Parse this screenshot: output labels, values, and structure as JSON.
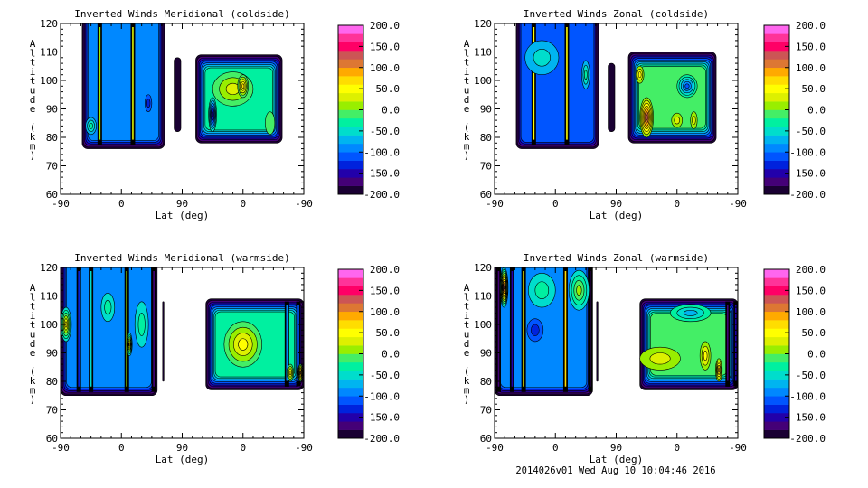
{
  "footer": "2014026v01 Wed Aug 10 10:04:46 2016",
  "colorbar": {
    "range": [
      -200,
      200
    ],
    "step": 20,
    "colors": [
      "#1a0033",
      "#440077",
      "#2200aa",
      "#0022dd",
      "#0055ff",
      "#0088ff",
      "#00b4f0",
      "#00ddcc",
      "#00f0a0",
      "#44ee66",
      "#99ee00",
      "#ddf000",
      "#ffff00",
      "#ffdd00",
      "#ffaa00",
      "#dd7733",
      "#cc5555",
      "#ff0066",
      "#ff3399",
      "#ff66ee"
    ],
    "labels": [
      "200.0",
      "150.0",
      "100.0",
      "50.0",
      "0.0",
      "-50.0",
      "-100.0",
      "-150.0",
      "-200.0"
    ],
    "label_values": [
      200,
      150,
      100,
      50,
      0,
      -50,
      -100,
      -150,
      -200
    ]
  },
  "chart_data": [
    {
      "type": "heatmap",
      "title": "Inverted Winds Meridional (coldside)",
      "xlabel": "Lat (deg)",
      "ylabel": "Altitude (km)",
      "xticks": [
        "-90",
        "0",
        "90",
        "0",
        "-90"
      ],
      "yticks": [
        "60",
        "70",
        "80",
        "90",
        "100",
        "110",
        "120"
      ],
      "ylim": [
        60,
        120
      ],
      "blocks": [
        {
          "pass": 1,
          "lat": [
            -58,
            64
          ],
          "alt": [
            76,
            120
          ],
          "base": -90,
          "stripes": [
            {
              "lat": -32,
              "value": 10
            },
            {
              "lat": 17,
              "value": 20
            }
          ],
          "blobs": [
            {
              "lat": -45,
              "alt": 84,
              "rx": 8,
              "ry": 3,
              "value": -40
            },
            {
              "lat": 40,
              "alt": 92,
              "rx": 5,
              "ry": 3,
              "value": -130
            }
          ]
        },
        {
          "pass": 1,
          "lat": [
            78,
            88
          ],
          "alt": [
            82,
            108
          ],
          "base": -190,
          "stripes": [],
          "blobs": []
        },
        {
          "pass": 2,
          "lat": [
            70,
            -58
          ],
          "alt": [
            78,
            109
          ],
          "base": -30,
          "stripes": [],
          "blobs": [
            {
              "lat": 15,
              "alt": 97,
              "rx": 30,
              "ry": 6,
              "value": 30
            },
            {
              "lat": 0,
              "alt": 98,
              "rx": 8,
              "ry": 4,
              "value": 60
            },
            {
              "lat": 45,
              "alt": 88,
              "rx": 6,
              "ry": 6,
              "value": -150
            },
            {
              "lat": -40,
              "alt": 85,
              "rx": 7,
              "ry": 4,
              "value": -30
            }
          ]
        }
      ]
    },
    {
      "type": "heatmap",
      "title": "Inverted Winds Zonal (coldside)",
      "xlabel": "Lat (deg)",
      "ylabel": "Altitude (km)",
      "xticks": [
        "-90",
        "0",
        "90",
        "0",
        "-90"
      ],
      "yticks": [
        "60",
        "70",
        "80",
        "90",
        "100",
        "110",
        "120"
      ],
      "ylim": [
        60,
        120
      ],
      "blocks": [
        {
          "pass": 1,
          "lat": [
            -58,
            64
          ],
          "alt": [
            76,
            120
          ],
          "base": -95,
          "stripes": [
            {
              "lat": -32,
              "value": 40
            },
            {
              "lat": 17,
              "value": 40
            }
          ],
          "blobs": [
            {
              "lat": -20,
              "alt": 108,
              "rx": 25,
              "ry": 6,
              "value": -60
            },
            {
              "lat": 45,
              "alt": 102,
              "rx": 6,
              "ry": 5,
              "value": -30
            }
          ]
        },
        {
          "pass": 1,
          "lat": [
            78,
            88
          ],
          "alt": [
            82,
            106
          ],
          "base": -190,
          "stripes": [],
          "blobs": []
        },
        {
          "pass": 2,
          "lat": [
            72,
            -58
          ],
          "alt": [
            78,
            110
          ],
          "base": -10,
          "stripes": [],
          "blobs": [
            {
              "lat": 45,
              "alt": 87,
              "rx": 10,
              "ry": 7,
              "value": 130
            },
            {
              "lat": 0,
              "alt": 86,
              "rx": 8,
              "ry": 2.5,
              "value": 30
            },
            {
              "lat": -25,
              "alt": 86,
              "rx": 5,
              "ry": 3,
              "value": 30
            },
            {
              "lat": -15,
              "alt": 98,
              "rx": 15,
              "ry": 4,
              "value": -110
            },
            {
              "lat": 55,
              "alt": 102,
              "rx": 6,
              "ry": 3,
              "value": 50
            }
          ]
        }
      ]
    },
    {
      "type": "heatmap",
      "title": "Inverted Winds Meridional (warmside)",
      "xlabel": "Lat (deg)",
      "ylabel": "Altitude (km)",
      "xticks": [
        "-90",
        "0",
        "90",
        "0",
        "-90"
      ],
      "yticks": [
        "60",
        "70",
        "80",
        "90",
        "100",
        "110",
        "120"
      ],
      "ylim": [
        60,
        120
      ],
      "blocks": [
        {
          "pass": 1,
          "lat": [
            -90,
            53
          ],
          "alt": [
            75,
            120
          ],
          "base": -80,
          "stripes": [
            {
              "lat": -63,
              "value": -140
            },
            {
              "lat": -45,
              "value": -60
            },
            {
              "lat": 8,
              "value": 0
            },
            {
              "lat": 48,
              "value": -180
            }
          ],
          "blobs": [
            {
              "lat": -82,
              "alt": 100,
              "rx": 8,
              "ry": 6,
              "value": 40
            },
            {
              "lat": 12,
              "alt": 93,
              "rx": 4,
              "ry": 4,
              "value": 40
            },
            {
              "lat": -20,
              "alt": 106,
              "rx": 10,
              "ry": 5,
              "value": -40
            },
            {
              "lat": 30,
              "alt": 100,
              "rx": 10,
              "ry": 8,
              "value": -50
            }
          ]
        },
        {
          "pass": 1,
          "lat": [
            61,
            63
          ],
          "alt": [
            80,
            108
          ],
          "base": -190,
          "stripes": [],
          "blobs": []
        },
        {
          "pass": 2,
          "lat": [
            55,
            -90
          ],
          "alt": [
            77,
            109
          ],
          "base": -30,
          "stripes": [
            {
              "lat": -65,
              "value": -100
            },
            {
              "lat": -82,
              "value": -120
            }
          ],
          "blobs": [
            {
              "lat": 0,
              "alt": 93,
              "rx": 28,
              "ry": 8,
              "value": 50
            },
            {
              "lat": -85,
              "alt": 83,
              "rx": 4,
              "ry": 3,
              "value": 100
            },
            {
              "lat": -70,
              "alt": 83,
              "rx": 5,
              "ry": 3,
              "value": 40
            }
          ]
        }
      ]
    },
    {
      "type": "heatmap",
      "title": "Inverted Winds Zonal (warmside)",
      "xlabel": "Lat (deg)",
      "ylabel": "Altitude (km)",
      "xticks": [
        "-90",
        "0",
        "90",
        "0",
        "-90"
      ],
      "yticks": [
        "60",
        "70",
        "80",
        "90",
        "100",
        "110",
        "120"
      ],
      "ylim": [
        60,
        120
      ],
      "blocks": [
        {
          "pass": 1,
          "lat": [
            -90,
            55
          ],
          "alt": [
            75,
            120
          ],
          "base": -80,
          "stripes": [
            {
              "lat": -84,
              "value": -180
            },
            {
              "lat": -64,
              "value": -160
            },
            {
              "lat": -47,
              "value": 40
            },
            {
              "lat": 15,
              "value": 60
            },
            {
              "lat": 52,
              "value": -190
            }
          ],
          "blobs": [
            {
              "lat": -76,
              "alt": 113,
              "rx": 6,
              "ry": 7,
              "value": 110
            },
            {
              "lat": -30,
              "alt": 98,
              "rx": 12,
              "ry": 4,
              "value": -120
            },
            {
              "lat": -20,
              "alt": 112,
              "rx": 20,
              "ry": 6,
              "value": -40
            },
            {
              "lat": 35,
              "alt": 112,
              "rx": 15,
              "ry": 7,
              "value": -10
            }
          ]
        },
        {
          "pass": 1,
          "lat": [
            61,
            63
          ],
          "alt": [
            80,
            108
          ],
          "base": -190,
          "stripes": [],
          "blobs": []
        },
        {
          "pass": 2,
          "lat": [
            55,
            -90
          ],
          "alt": [
            77,
            109
          ],
          "base": -10,
          "stripes": [
            {
              "lat": -75,
              "value": -180
            },
            {
              "lat": -87,
              "value": -150
            }
          ],
          "blobs": [
            {
              "lat": 25,
              "alt": 88,
              "rx": 30,
              "ry": 4,
              "value": 20
            },
            {
              "lat": -42,
              "alt": 89,
              "rx": 8,
              "ry": 5,
              "value": 50
            },
            {
              "lat": -62,
              "alt": 84,
              "rx": 5,
              "ry": 4,
              "value": 80
            },
            {
              "lat": -20,
              "alt": 104,
              "rx": 30,
              "ry": 3,
              "value": -60
            }
          ]
        }
      ]
    }
  ]
}
